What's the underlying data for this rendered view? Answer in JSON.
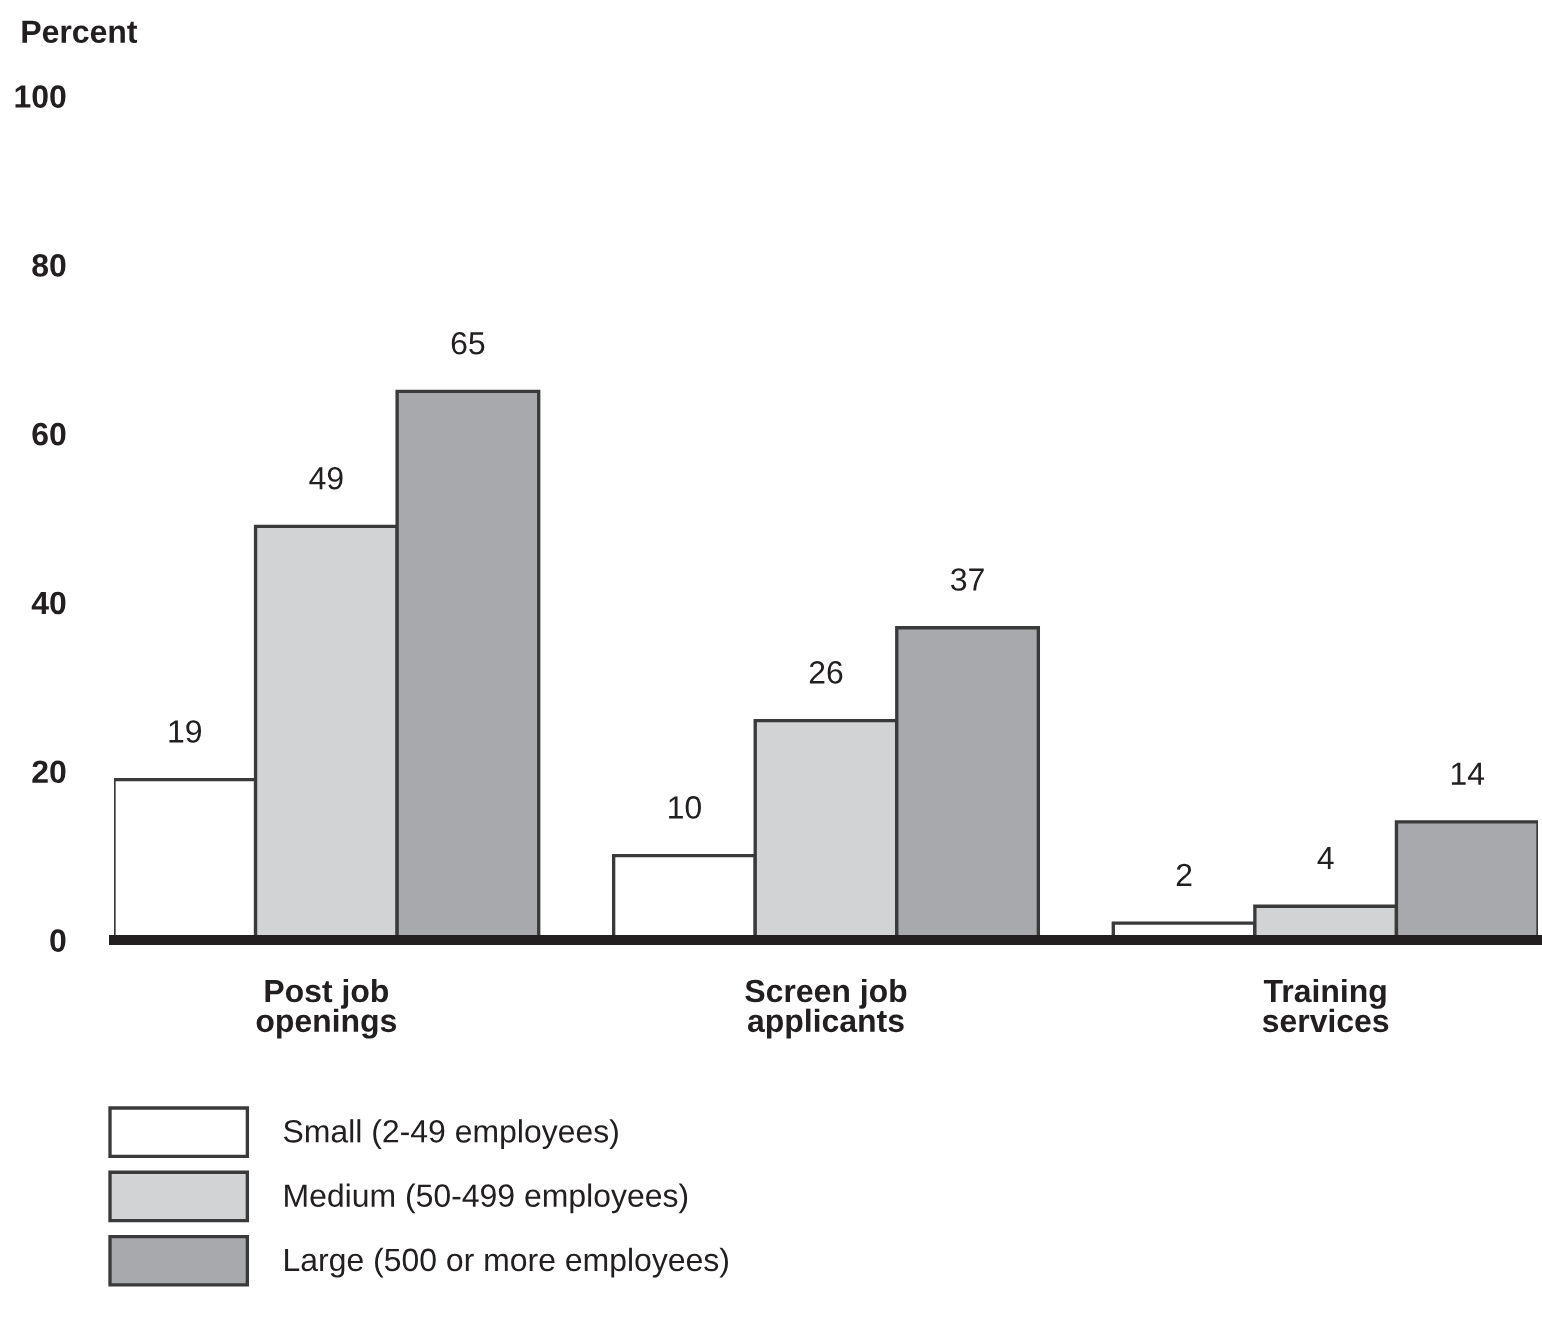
{
  "chart_data": {
    "type": "bar",
    "ylabel": "Percent",
    "categories": [
      "Post job\nopenings",
      "Screen job\napplicants",
      "Training\nservices"
    ],
    "series": [
      {
        "name": "Small (2-49 employees)",
        "color": "#ffffff",
        "values": [
          19,
          10,
          2
        ]
      },
      {
        "name": "Medium (50-499 employees)",
        "color": "#d1d3d4",
        "values": [
          49,
          26,
          4
        ]
      },
      {
        "name": "Large (500 or more employees)",
        "color": "#a7a9ac",
        "values": [
          65,
          37,
          14
        ]
      }
    ],
    "ylim": [
      0,
      100
    ],
    "yticks": [
      0,
      20,
      40,
      60,
      80,
      100
    ],
    "data_labels": true,
    "legend": "bottom left"
  }
}
